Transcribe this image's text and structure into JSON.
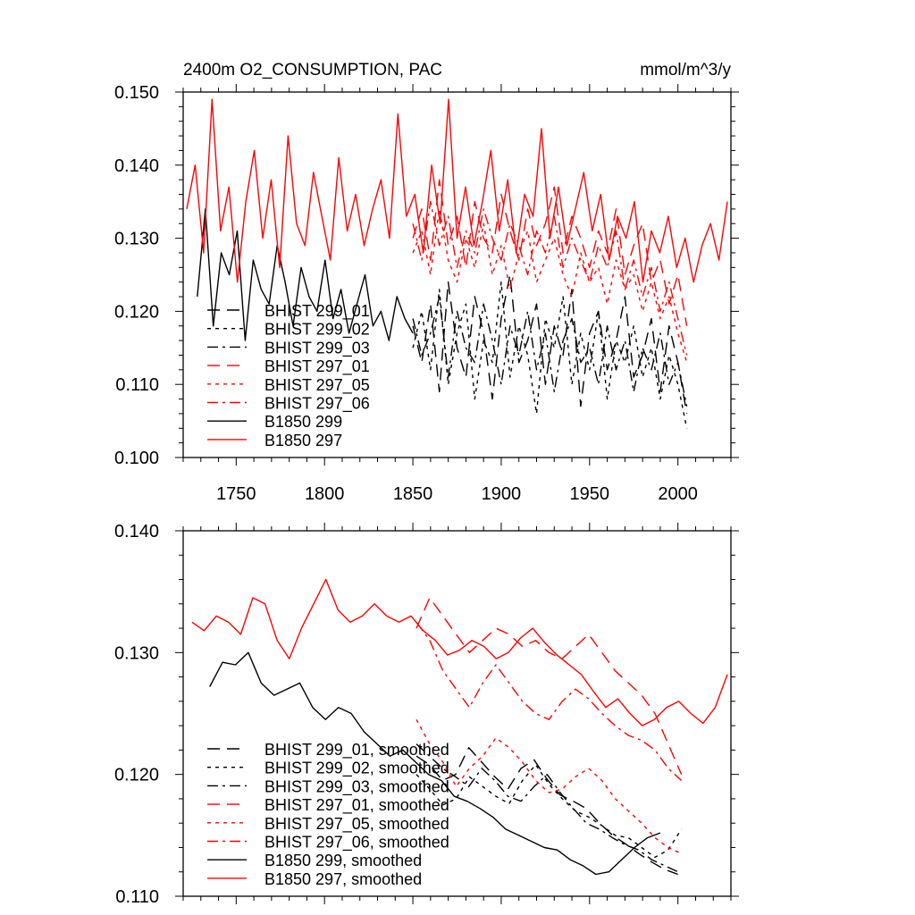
{
  "chart_data": [
    {
      "type": "line",
      "title_left": "2400m O2_CONSUMPTION, PAC",
      "title_right": "mmol/m^3/y",
      "xlabel": "",
      "ylabel": "",
      "xlim": [
        1720,
        2030
      ],
      "ylim": [
        0.1,
        0.15
      ],
      "x_ticks": [
        1750,
        1800,
        1850,
        1900,
        1950,
        2000
      ],
      "x_tick_labels": [
        "1750",
        "1800",
        "1850",
        "1900",
        "1950",
        "2000"
      ],
      "y_ticks": [
        0.1,
        0.11,
        0.12,
        0.13,
        0.14,
        0.15
      ],
      "y_tick_labels": [
        "0.100",
        "0.110",
        "0.120",
        "0.130",
        "0.140",
        "0.150"
      ],
      "legend_position": "left-center",
      "series": [
        {
          "name": "BHIST 299_01",
          "color": "#000000",
          "dash": "long-dash",
          "x_start": 1850,
          "x_end": 2005,
          "values": [
            0.118,
            0.113,
            0.121,
            0.109,
            0.124,
            0.115,
            0.111,
            0.122,
            0.117,
            0.108,
            0.119,
            0.125,
            0.113,
            0.116,
            0.121,
            0.11,
            0.118,
            0.114,
            0.123,
            0.107,
            0.117,
            0.12,
            0.112,
            0.116,
            0.122,
            0.111,
            0.114,
            0.119,
            0.109,
            0.118,
            0.113,
            0.106
          ]
        },
        {
          "name": "BHIST 299_02",
          "color": "#000000",
          "dash": "dot",
          "x_start": 1850,
          "x_end": 2005,
          "values": [
            0.115,
            0.12,
            0.112,
            0.123,
            0.11,
            0.117,
            0.121,
            0.108,
            0.116,
            0.113,
            0.124,
            0.111,
            0.118,
            0.114,
            0.106,
            0.119,
            0.115,
            0.122,
            0.11,
            0.117,
            0.112,
            0.12,
            0.108,
            0.116,
            0.113,
            0.118,
            0.111,
            0.115,
            0.108,
            0.114,
            0.11,
            0.104
          ]
        },
        {
          "name": "BHIST 299_03",
          "color": "#000000",
          "dash": "dash-dot",
          "x_start": 1850,
          "x_end": 2005,
          "values": [
            0.119,
            0.114,
            0.117,
            0.122,
            0.111,
            0.12,
            0.115,
            0.113,
            0.121,
            0.116,
            0.11,
            0.118,
            0.114,
            0.12,
            0.112,
            0.117,
            0.109,
            0.116,
            0.119,
            0.113,
            0.115,
            0.11,
            0.118,
            0.112,
            0.116,
            0.109,
            0.115,
            0.112,
            0.117,
            0.11,
            0.113,
            0.107
          ]
        },
        {
          "name": "BHIST 297_01",
          "color": "#ff0000",
          "dash": "long-dash",
          "x_start": 1850,
          "x_end": 2005,
          "values": [
            0.13,
            0.134,
            0.127,
            0.138,
            0.129,
            0.133,
            0.126,
            0.135,
            0.13,
            0.128,
            0.136,
            0.131,
            0.127,
            0.134,
            0.129,
            0.132,
            0.137,
            0.128,
            0.133,
            0.13,
            0.126,
            0.131,
            0.128,
            0.134,
            0.125,
            0.129,
            0.132,
            0.124,
            0.127,
            0.121,
            0.125,
            0.118
          ]
        },
        {
          "name": "BHIST 297_05",
          "color": "#ff0000",
          "dash": "dot",
          "x_start": 1850,
          "x_end": 2005,
          "values": [
            0.128,
            0.131,
            0.125,
            0.134,
            0.127,
            0.124,
            0.13,
            0.126,
            0.132,
            0.125,
            0.129,
            0.123,
            0.128,
            0.131,
            0.124,
            0.127,
            0.13,
            0.125,
            0.122,
            0.128,
            0.124,
            0.126,
            0.121,
            0.127,
            0.123,
            0.125,
            0.12,
            0.124,
            0.119,
            0.122,
            0.117,
            0.113
          ]
        },
        {
          "name": "BHIST 297_06",
          "color": "#ff0000",
          "dash": "dash-dot",
          "x_start": 1850,
          "x_end": 2005,
          "values": [
            0.132,
            0.127,
            0.135,
            0.129,
            0.133,
            0.126,
            0.131,
            0.128,
            0.134,
            0.13,
            0.127,
            0.132,
            0.129,
            0.125,
            0.131,
            0.128,
            0.133,
            0.126,
            0.13,
            0.127,
            0.124,
            0.129,
            0.126,
            0.131,
            0.123,
            0.127,
            0.122,
            0.126,
            0.12,
            0.124,
            0.119,
            0.114
          ]
        },
        {
          "name": "B1850 299",
          "color": "#000000",
          "dash": "solid",
          "x_start": 1728,
          "x_end": 1850,
          "values": [
            0.122,
            0.134,
            0.118,
            0.128,
            0.125,
            0.131,
            0.116,
            0.127,
            0.123,
            0.121,
            0.129,
            0.124,
            0.118,
            0.126,
            0.122,
            0.12,
            0.127,
            0.119,
            0.123,
            0.117,
            0.121,
            0.125,
            0.118,
            0.12,
            0.116,
            0.122,
            0.119,
            0.117
          ]
        },
        {
          "name": "B1850 297",
          "color": "#ff0000",
          "dash": "solid",
          "x_start": 1722,
          "x_end": 2028,
          "values": [
            0.134,
            0.14,
            0.128,
            0.149,
            0.131,
            0.137,
            0.124,
            0.135,
            0.142,
            0.13,
            0.138,
            0.126,
            0.144,
            0.132,
            0.129,
            0.139,
            0.133,
            0.127,
            0.141,
            0.131,
            0.136,
            0.129,
            0.134,
            0.138,
            0.13,
            0.147,
            0.133,
            0.136,
            0.128,
            0.14,
            0.132,
            0.149,
            0.13,
            0.137,
            0.129,
            0.135,
            0.142,
            0.131,
            0.138,
            0.128,
            0.136,
            0.133,
            0.145,
            0.13,
            0.137,
            0.129,
            0.134,
            0.139,
            0.131,
            0.136,
            0.127,
            0.133,
            0.13,
            0.135,
            0.124,
            0.131,
            0.128,
            0.133,
            0.126,
            0.13,
            0.124,
            0.129,
            0.132,
            0.127,
            0.135
          ]
        }
      ]
    },
    {
      "type": "line",
      "title_left": "",
      "title_right": "",
      "xlabel": "",
      "ylabel": "",
      "xlim": [
        1720,
        2030
      ],
      "ylim": [
        0.11,
        0.14
      ],
      "x_ticks": [
        1750,
        1800,
        1850,
        1900,
        1950,
        2000
      ],
      "x_tick_labels": [],
      "y_ticks": [
        0.11,
        0.12,
        0.13,
        0.14
      ],
      "y_tick_labels": [
        "0.110",
        "0.120",
        "0.130",
        "0.140"
      ],
      "legend_position": "bottom-left",
      "series": [
        {
          "name": "BHIST 299_01, smoothed",
          "color": "#000000",
          "dash": "long-dash",
          "x_start": 1852,
          "x_end": 2000,
          "values": [
            0.1215,
            0.1208,
            0.1195,
            0.12,
            0.1222,
            0.121,
            0.1198,
            0.1188,
            0.1205,
            0.1212,
            0.1196,
            0.1183,
            0.1178,
            0.1172,
            0.116,
            0.115,
            0.1143,
            0.1135,
            0.1128,
            0.1122,
            0.1118
          ]
        },
        {
          "name": "BHIST 299_02, smoothed",
          "color": "#000000",
          "dash": "dot",
          "x_start": 1852,
          "x_end": 2002,
          "values": [
            0.12,
            0.1188,
            0.1175,
            0.118,
            0.1198,
            0.119,
            0.1182,
            0.1176,
            0.1195,
            0.1208,
            0.1192,
            0.118,
            0.117,
            0.1165,
            0.1158,
            0.115,
            0.1148,
            0.114,
            0.1132,
            0.1138,
            0.1155
          ]
        },
        {
          "name": "BHIST 299_03, smoothed",
          "color": "#000000",
          "dash": "dash-dot",
          "x_start": 1852,
          "x_end": 2000,
          "values": [
            0.1225,
            0.1215,
            0.1205,
            0.1198,
            0.119,
            0.1205,
            0.1195,
            0.1182,
            0.1178,
            0.119,
            0.12,
            0.1185,
            0.1172,
            0.116,
            0.1155,
            0.1148,
            0.1142,
            0.1138,
            0.113,
            0.1125,
            0.112
          ]
        },
        {
          "name": "BHIST 297_01, smoothed",
          "color": "#ff0000",
          "dash": "long-dash",
          "x_start": 1852,
          "x_end": 2002,
          "values": [
            0.132,
            0.1345,
            0.133,
            0.1315,
            0.13,
            0.131,
            0.132,
            0.1315,
            0.1305,
            0.131,
            0.13,
            0.1295,
            0.1305,
            0.1315,
            0.13,
            0.1285,
            0.1275,
            0.1265,
            0.125,
            0.1225,
            0.12
          ]
        },
        {
          "name": "BHIST 297_05, smoothed",
          "color": "#ff0000",
          "dash": "dot",
          "x_start": 1852,
          "x_end": 2002,
          "values": [
            0.1245,
            0.1225,
            0.121,
            0.119,
            0.1205,
            0.1215,
            0.123,
            0.1222,
            0.121,
            0.1195,
            0.1185,
            0.1188,
            0.1198,
            0.1205,
            0.1195,
            0.118,
            0.117,
            0.116,
            0.1148,
            0.114,
            0.1135
          ]
        },
        {
          "name": "BHIST 297_06, smoothed",
          "color": "#ff0000",
          "dash": "dash-dot",
          "x_start": 1852,
          "x_end": 2002,
          "values": [
            0.1325,
            0.131,
            0.1285,
            0.127,
            0.1255,
            0.1275,
            0.129,
            0.1275,
            0.126,
            0.125,
            0.1245,
            0.126,
            0.127,
            0.1262,
            0.125,
            0.124,
            0.1232,
            0.1228,
            0.122,
            0.1205,
            0.1195
          ]
        },
        {
          "name": "B1850 299, smoothed",
          "color": "#000000",
          "dash": "solid",
          "x_start": 1735,
          "x_end": 1990,
          "values": [
            0.1272,
            0.1292,
            0.129,
            0.13,
            0.1275,
            0.1265,
            0.127,
            0.1275,
            0.1255,
            0.1245,
            0.1255,
            0.125,
            0.1235,
            0.1225,
            0.1215,
            0.122,
            0.121,
            0.12,
            0.1195,
            0.1182,
            0.1178,
            0.1172,
            0.1165,
            0.1155,
            0.115,
            0.1145,
            0.114,
            0.1138,
            0.113,
            0.1125,
            0.1118,
            0.112,
            0.113,
            0.114,
            0.1148,
            0.1152
          ]
        },
        {
          "name": "B1850 297, smoothed",
          "color": "#ff0000",
          "dash": "solid",
          "x_start": 1725,
          "x_end": 2028,
          "values": [
            0.1325,
            0.1318,
            0.133,
            0.1325,
            0.1315,
            0.1345,
            0.134,
            0.131,
            0.1295,
            0.132,
            0.134,
            0.136,
            0.1335,
            0.1325,
            0.133,
            0.134,
            0.133,
            0.1325,
            0.133,
            0.1318,
            0.131,
            0.1298,
            0.1302,
            0.131,
            0.1305,
            0.1295,
            0.13,
            0.1312,
            0.132,
            0.1308,
            0.1298,
            0.129,
            0.1282,
            0.1268,
            0.1255,
            0.1262,
            0.125,
            0.124,
            0.1245,
            0.1255,
            0.126,
            0.125,
            0.1242,
            0.1255,
            0.1282
          ]
        }
      ]
    }
  ]
}
